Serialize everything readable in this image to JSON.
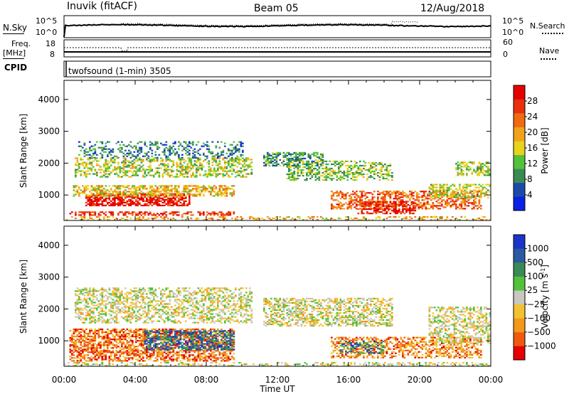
{
  "header": {
    "station": "Inuvik (fitACF)",
    "beam": "Beam 05",
    "date": "12/Aug/2018"
  },
  "summary_panels": {
    "noise": {
      "left_label": "N.Sky",
      "right_label": "N.Search",
      "left_ticks": [
        "10^5",
        "10^0"
      ],
      "right_ticks": [
        "10^5",
        "10^0"
      ]
    },
    "freq": {
      "left_label_lines": [
        "Freq.",
        "[MHz]"
      ],
      "right_label": "Nave",
      "left_ticks": [
        "18",
        "8"
      ],
      "right_ticks": [
        "60",
        "0"
      ]
    },
    "cpid": {
      "label": "CPID",
      "text": "twofsound (1-min) 3505"
    }
  },
  "colors": {
    "power": [
      "#0a20e6",
      "#1c4aa8",
      "#3a8a56",
      "#52c23a",
      "#e8d21c",
      "#f2a21a",
      "#f06a10",
      "#e8300e",
      "#e60000"
    ],
    "velocity": [
      "#e60000",
      "#ee5a10",
      "#f2981a",
      "#f2c230",
      "#c8c8c0",
      "#52c23a",
      "#3a8a56",
      "#2a5aa0",
      "#1c34c8"
    ],
    "ground": "#b8b8b0"
  },
  "chart_data": [
    {
      "type": "heatmap",
      "name": "power",
      "ylabel": "Slant Range [km]",
      "ylim": [
        200,
        4600
      ],
      "yticks": [
        1000,
        2000,
        3000,
        4000
      ],
      "xlim": [
        0,
        24
      ],
      "colorbar": {
        "label": "Power [dB]",
        "range": [
          0,
          32
        ],
        "ticks": [
          4,
          8,
          12,
          16,
          20,
          24,
          28
        ]
      },
      "bands": [
        {
          "t0": 0.3,
          "t1": 9.5,
          "r_low": 350,
          "r_high": 480,
          "level": 0.85,
          "density": 0.55
        },
        {
          "t0": 1.2,
          "t1": 7.0,
          "r_low": 650,
          "r_high": 1050,
          "level": 0.92,
          "density": 0.7
        },
        {
          "t0": 0.5,
          "t1": 9.5,
          "r_low": 950,
          "r_high": 1300,
          "level": 0.55,
          "density": 0.6
        },
        {
          "t0": 0.6,
          "t1": 10.5,
          "r_low": 1550,
          "r_high": 2150,
          "level": 0.45,
          "density": 0.45
        },
        {
          "t0": 0.8,
          "t1": 10.0,
          "r_low": 2150,
          "r_high": 2650,
          "level": 0.25,
          "density": 0.3
        },
        {
          "t0": 11.2,
          "t1": 14.5,
          "r_low": 1900,
          "r_high": 2350,
          "level": 0.3,
          "density": 0.55
        },
        {
          "t0": 12.5,
          "t1": 18.5,
          "r_low": 1450,
          "r_high": 2050,
          "level": 0.4,
          "density": 0.45
        },
        {
          "t0": 15.0,
          "t1": 23.5,
          "r_low": 550,
          "r_high": 1100,
          "level": 0.75,
          "density": 0.5
        },
        {
          "t0": 16.5,
          "t1": 19.8,
          "r_low": 400,
          "r_high": 800,
          "level": 0.88,
          "density": 0.55
        },
        {
          "t0": 20.5,
          "t1": 24.0,
          "r_low": 900,
          "r_high": 1350,
          "level": 0.5,
          "density": 0.5
        },
        {
          "t0": 22.0,
          "t1": 24.0,
          "r_low": 1600,
          "r_high": 2050,
          "level": 0.45,
          "density": 0.5
        },
        {
          "t0": 0.0,
          "t1": 24.0,
          "r_low": 200,
          "r_high": 330,
          "level": 0.6,
          "density": 0.3
        }
      ]
    },
    {
      "type": "heatmap",
      "name": "velocity",
      "ylabel": "Slant Range [km]",
      "xlabel": "Time UT",
      "ylim": [
        200,
        4600
      ],
      "yticks": [
        1000,
        2000,
        3000,
        4000
      ],
      "xlim": [
        0,
        24
      ],
      "xticks": [
        "00:00",
        "04:00",
        "08:00",
        "12:00",
        "16:00",
        "20:00",
        "00:00"
      ],
      "colorbar": {
        "label": "Velocity [m s-1]",
        "tick_labels": [
          "-1000",
          "-500",
          "-100",
          "-25",
          "25",
          "100",
          "500",
          "1000"
        ]
      },
      "bands": [
        {
          "t0": 0.3,
          "t1": 9.5,
          "r_low": 350,
          "r_high": 1350,
          "level": 0.2,
          "density": 0.6
        },
        {
          "t0": 4.5,
          "t1": 9.5,
          "r_low": 700,
          "r_high": 1300,
          "level": 0.8,
          "density": 0.5
        },
        {
          "t0": 0.6,
          "t1": 10.5,
          "r_low": 1550,
          "r_high": 2650,
          "level": 0.47,
          "density": 0.45
        },
        {
          "t0": 11.2,
          "t1": 18.5,
          "r_low": 1450,
          "r_high": 2350,
          "level": 0.47,
          "density": 0.5
        },
        {
          "t0": 15.0,
          "t1": 23.5,
          "r_low": 450,
          "r_high": 1100,
          "level": 0.25,
          "density": 0.5
        },
        {
          "t0": 15.5,
          "t1": 18.0,
          "r_low": 600,
          "r_high": 1000,
          "level": 0.75,
          "density": 0.35
        },
        {
          "t0": 20.5,
          "t1": 24.0,
          "r_low": 900,
          "r_high": 2050,
          "level": 0.47,
          "density": 0.45
        },
        {
          "t0": 0.0,
          "t1": 24.0,
          "r_low": 200,
          "r_high": 330,
          "level": 0.47,
          "density": 0.3
        }
      ]
    }
  ],
  "xaxis": {
    "tick_labels": [
      "00:00",
      "04:00",
      "08:00",
      "12:00",
      "16:00",
      "20:00",
      "00:00"
    ],
    "label": "Time UT"
  }
}
